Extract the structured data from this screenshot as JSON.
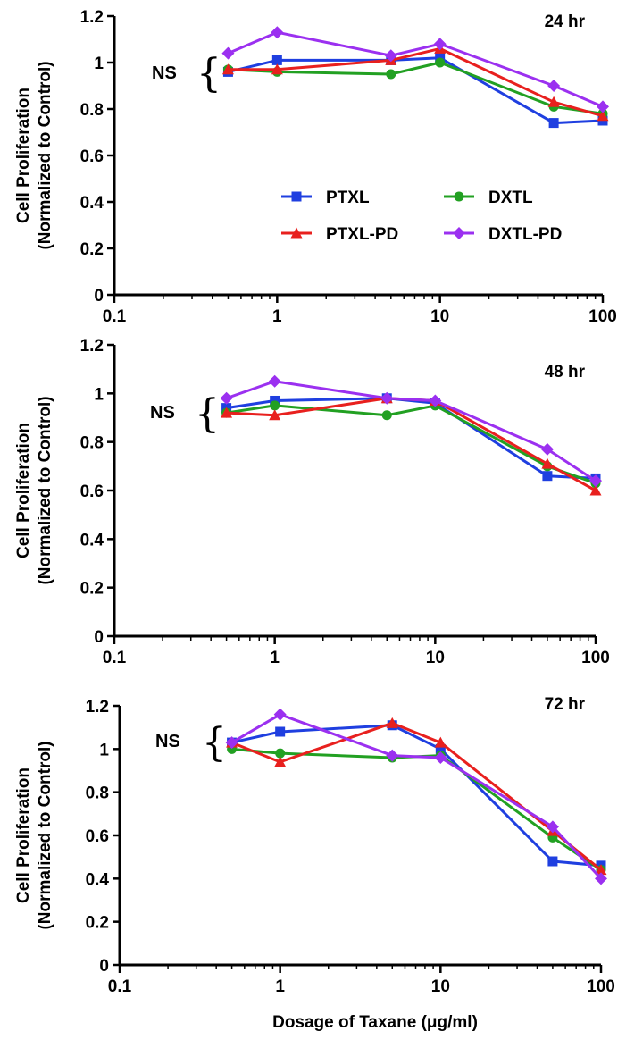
{
  "figure": {
    "xlabel": "Dosage of Taxane (μg/ml)",
    "ns_label": "NS",
    "brace_glyph": "{"
  },
  "legend": [
    {
      "name": "PTXL",
      "color": "#1f3fe0",
      "marker": "square"
    },
    {
      "name": "DXTL",
      "color": "#22a022",
      "marker": "circle"
    },
    {
      "name": "PTXL-PD",
      "color": "#e8201e",
      "marker": "triangle"
    },
    {
      "name": "DXTL-PD",
      "color": "#9b30f0",
      "marker": "diamond"
    }
  ],
  "chart_data": [
    {
      "type": "line",
      "title": "24 hr",
      "ylabel_line1": "Cell Proliferation",
      "ylabel_line2": "(Normalized to Control)",
      "xscale": "log",
      "xlim": [
        0.1,
        100
      ],
      "ylim": [
        0,
        1.2
      ],
      "xticks": [
        "0.1",
        "1",
        "10",
        "100"
      ],
      "yticks": [
        "0",
        "0.2",
        "0.4",
        "0.6",
        "0.8",
        "1",
        "1.2"
      ],
      "x": [
        0.5,
        1,
        5,
        10,
        50,
        100
      ],
      "series": [
        {
          "name": "PTXL",
          "values": [
            0.96,
            1.01,
            1.01,
            1.02,
            0.74,
            0.75
          ]
        },
        {
          "name": "DXTL",
          "values": [
            0.97,
            0.96,
            0.95,
            1.0,
            0.81,
            0.78
          ]
        },
        {
          "name": "PTXL-PD",
          "values": [
            0.97,
            0.97,
            1.01,
            1.06,
            0.83,
            0.77
          ]
        },
        {
          "name": "DXTL-PD",
          "values": [
            1.04,
            1.13,
            1.03,
            1.08,
            0.9,
            0.81
          ]
        }
      ]
    },
    {
      "type": "line",
      "title": "48 hr",
      "ylabel_line1": "Cell Proliferation",
      "ylabel_line2": "(Normalized to Control)",
      "xscale": "log",
      "xlim": [
        0.1,
        100
      ],
      "ylim": [
        0,
        1.2
      ],
      "xticks": [
        "0.1",
        "1",
        "10",
        "100"
      ],
      "yticks": [
        "0",
        "0.2",
        "0.4",
        "0.6",
        "0.8",
        "1",
        "1.2"
      ],
      "x": [
        0.5,
        1,
        5,
        10,
        50,
        100
      ],
      "series": [
        {
          "name": "PTXL",
          "values": [
            0.94,
            0.97,
            0.98,
            0.96,
            0.66,
            0.65
          ]
        },
        {
          "name": "DXTL",
          "values": [
            0.92,
            0.95,
            0.91,
            0.95,
            0.7,
            0.63
          ]
        },
        {
          "name": "PTXL-PD",
          "values": [
            0.92,
            0.91,
            0.98,
            0.97,
            0.71,
            0.6
          ]
        },
        {
          "name": "DXTL-PD",
          "values": [
            0.98,
            1.05,
            0.98,
            0.97,
            0.77,
            0.64
          ]
        }
      ]
    },
    {
      "type": "line",
      "title": "72 hr",
      "ylabel_line1": "Cell Proliferation",
      "ylabel_line2": "(Normalized to Control)",
      "xscale": "log",
      "xlim": [
        0.1,
        100
      ],
      "ylim": [
        0,
        1.2
      ],
      "xticks": [
        "0.1",
        "1",
        "10",
        "100"
      ],
      "yticks": [
        "0",
        "0.2",
        "0.4",
        "0.6",
        "0.8",
        "1",
        "1.2"
      ],
      "x": [
        0.5,
        1,
        5,
        10,
        50,
        100
      ],
      "series": [
        {
          "name": "PTXL",
          "values": [
            1.03,
            1.08,
            1.11,
            1.0,
            0.48,
            0.46
          ]
        },
        {
          "name": "DXTL",
          "values": [
            1.0,
            0.98,
            0.96,
            0.97,
            0.59,
            0.44
          ]
        },
        {
          "name": "PTXL-PD",
          "values": [
            1.03,
            0.94,
            1.12,
            1.03,
            0.62,
            0.44
          ]
        },
        {
          "name": "DXTL-PD",
          "values": [
            1.03,
            1.16,
            0.97,
            0.96,
            0.64,
            0.4
          ]
        }
      ]
    }
  ]
}
